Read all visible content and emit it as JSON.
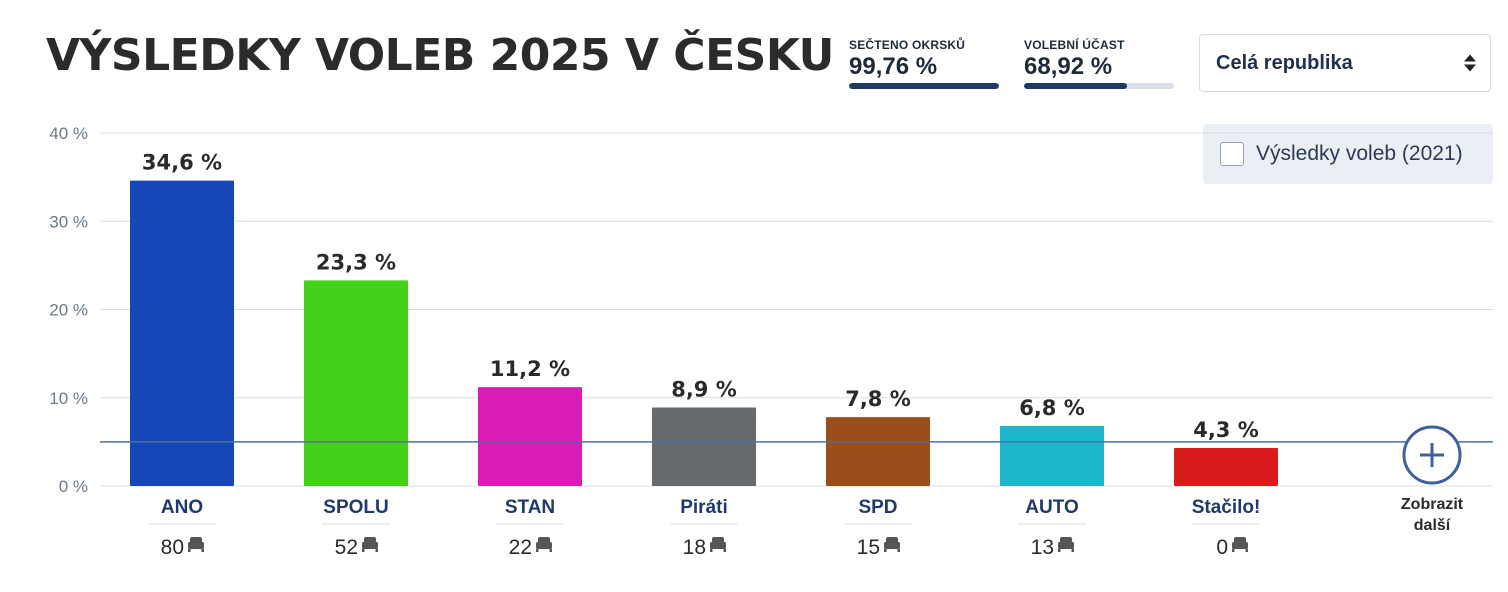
{
  "header": {
    "title": "VÝSLEDKY VOLEB 2025 V ČESKU"
  },
  "stats": [
    {
      "label": "SEČTENO OKRSKŮ",
      "value": "99,76 %",
      "fraction": 0.9976
    },
    {
      "label": "VOLEBNÍ ÚČAST",
      "value": "68,92 %",
      "fraction": 0.6892
    }
  ],
  "region_select": {
    "selected": "Celá republika"
  },
  "compare_toggle": {
    "label": "Výsledky voleb (2021)",
    "checked": false
  },
  "more_button": {
    "line1": "Zobrazit",
    "line2": "další"
  },
  "colors": {
    "threshold_line": "#4a6fa5",
    "grid": "#d9dde2",
    "axis_text": "#6b7a8a",
    "party_name": "#1f3a6b"
  },
  "chart_data": {
    "type": "bar",
    "categories": [
      "ANO",
      "SPOLU",
      "STAN",
      "Piráti",
      "SPD",
      "AUTO",
      "Stačilo!"
    ],
    "values": [
      34.6,
      23.3,
      11.2,
      8.9,
      7.8,
      6.8,
      4.3
    ],
    "value_labels": [
      "34,6 %",
      "23,3 %",
      "11,2 %",
      "8,9 %",
      "7,8 %",
      "6,8 %",
      "4,3 %"
    ],
    "seats": [
      "80",
      "52",
      "22",
      "18",
      "15",
      "13",
      "0"
    ],
    "bar_colors": [
      "#1547b8",
      "#44d11a",
      "#d91bb8",
      "#646a6e",
      "#9b4d1a",
      "#1db6cc",
      "#d81b1b"
    ],
    "ylim": [
      0,
      40
    ],
    "yticks": [
      0,
      10,
      20,
      30,
      40
    ],
    "ytick_labels": [
      "0 %",
      "10 %",
      "20 %",
      "30 %",
      "40 %"
    ],
    "threshold": 5,
    "grid": true,
    "title": "",
    "xlabel": "",
    "ylabel": ""
  }
}
